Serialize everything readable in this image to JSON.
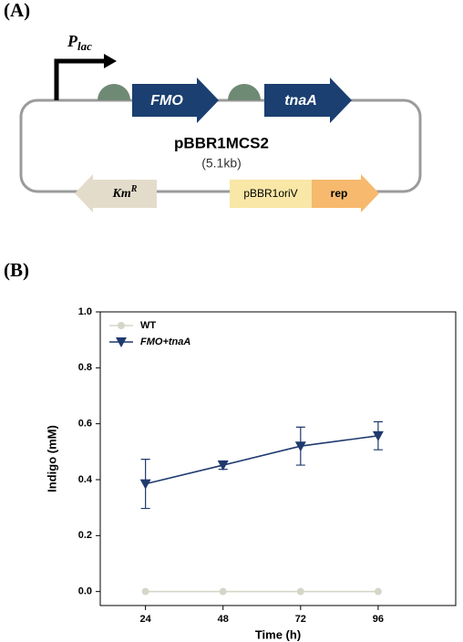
{
  "panel_a": {
    "label": "(A)",
    "promoter": {
      "label": "P",
      "subscript": "lac"
    },
    "genes": [
      "FMO",
      "tnaA"
    ],
    "plasmid": {
      "name": "pBBR1MCS2",
      "size": "(5.1kb)"
    },
    "marker": {
      "label": "Km",
      "superscript": "R"
    },
    "origin": "pBBR1oriV",
    "rep": "rep"
  },
  "panel_b": {
    "label": "(B)"
  },
  "chart_data": {
    "type": "line",
    "x_label": "Time (h)",
    "y_label": "Indigo (mM)",
    "x": [
      24,
      48,
      72,
      96
    ],
    "series": [
      {
        "name": "WT",
        "color": "#d6d6c8",
        "marker": "circle",
        "values": [
          0,
          0,
          0,
          0
        ]
      },
      {
        "name": "FMO+tnaA",
        "color": "#1f3a6e",
        "marker": "triangle-down",
        "values": [
          0.385,
          0.452,
          0.52,
          0.557
        ],
        "errors": [
          0.088,
          0.015,
          0.068,
          0.05
        ]
      }
    ],
    "xlim": [
      10,
      120
    ],
    "ylim": [
      -0.05,
      1.0
    ],
    "xticks": [
      24,
      48,
      72,
      96
    ],
    "yticks": [
      {
        "value": 0,
        "label": "0.0"
      },
      0.2,
      0.4,
      0.6,
      0.8,
      {
        "value": 1,
        "label": "1.0"
      }
    ],
    "legend": "upper-left"
  }
}
